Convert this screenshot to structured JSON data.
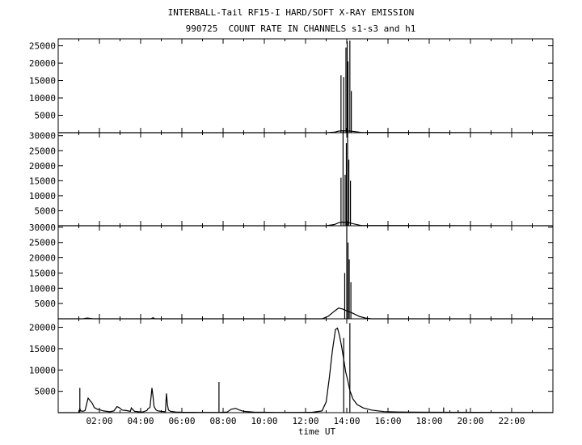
{
  "title": "INTERBALL-Tail RF15-I HARD/SOFT X-RAY EMISSION",
  "subtitle": "990725  COUNT RATE IN CHANNELS s1-s3 and h1",
  "chart_data": [
    {
      "type": "line",
      "panel": "s1",
      "x_range": [
        0,
        24
      ],
      "xlabel": "",
      "ylim": [
        0,
        27000
      ],
      "ytick_values": [
        5000,
        10000,
        15000,
        20000,
        25000
      ],
      "ytick_labels": [
        "5000",
        "10000",
        "15000",
        "20000",
        "25000"
      ],
      "baseline": {
        "x": [
          0,
          13.0,
          13.4,
          13.6,
          13.75,
          14.1,
          14.4,
          14.7,
          24
        ],
        "y": [
          0,
          0,
          150,
          450,
          550,
          500,
          300,
          60,
          0
        ]
      },
      "spikes": {
        "x": [
          13.72,
          13.85,
          13.96,
          14.02,
          14.06,
          14.15,
          14.22
        ],
        "y": [
          16500,
          16000,
          24500,
          26300,
          20500,
          26500,
          12000
        ]
      }
    },
    {
      "type": "line",
      "panel": "s2",
      "x_range": [
        0,
        24
      ],
      "xlabel": "",
      "ylim": [
        0,
        31000
      ],
      "ytick_values": [
        5000,
        10000,
        15000,
        20000,
        25000,
        30000
      ],
      "ytick_labels": [
        "5000",
        "10000",
        "15000",
        "20000",
        "25000",
        "30000"
      ],
      "baseline": {
        "x": [
          0,
          13.0,
          13.4,
          13.6,
          13.75,
          14.1,
          14.4,
          14.7,
          24
        ],
        "y": [
          0,
          0,
          400,
          1000,
          1200,
          1000,
          500,
          80,
          0
        ]
      },
      "spikes": {
        "x": [
          13.72,
          13.82,
          13.92,
          13.98,
          14.04,
          14.1,
          14.18
        ],
        "y": [
          16000,
          31500,
          17000,
          27500,
          31000,
          22000,
          15000
        ]
      }
    },
    {
      "type": "line",
      "panel": "s3",
      "x_range": [
        0,
        24
      ],
      "xlabel": "",
      "ylim": [
        0,
        30500
      ],
      "ytick_values": [
        5000,
        10000,
        15000,
        20000,
        25000,
        30000
      ],
      "ytick_labels": [
        "5000",
        "10000",
        "15000",
        "20000",
        "25000",
        "30000"
      ],
      "baseline": {
        "x": [
          0,
          1.2,
          1.4,
          1.7,
          4.5,
          4.6,
          4.7,
          12.8,
          13.1,
          13.4,
          13.6,
          13.8,
          14.0,
          14.3,
          14.6,
          14.9,
          15.2,
          24
        ],
        "y": [
          0,
          0,
          250,
          0,
          0,
          350,
          0,
          0,
          800,
          2500,
          3500,
          3200,
          2600,
          1800,
          800,
          250,
          0,
          0
        ]
      },
      "spikes": {
        "x": [
          13.9,
          14.0,
          14.06,
          14.12,
          14.2
        ],
        "y": [
          15000,
          30000,
          25000,
          19500,
          12000
        ]
      }
    },
    {
      "type": "line",
      "panel": "h1",
      "x_range": [
        0,
        24
      ],
      "xlabel": "time UT",
      "ylim": [
        0,
        22000
      ],
      "ytick_values": [
        5000,
        10000,
        15000,
        20000
      ],
      "ytick_labels": [
        "5000",
        "10000",
        "15000",
        "20000"
      ],
      "xtick_values": [
        2,
        4,
        6,
        8,
        10,
        12,
        14,
        16,
        18,
        20,
        22
      ],
      "xtick_labels": [
        "02:00",
        "04:00",
        "06:00",
        "08:00",
        "10:00",
        "12:00",
        "14:00",
        "16:00",
        "18:00",
        "20:00",
        "22:00"
      ],
      "baseline": {
        "x": [
          0,
          1.0,
          1.05,
          1.1,
          1.2,
          1.3,
          1.45,
          1.55,
          1.65,
          1.75,
          1.9,
          2.05,
          2.2,
          2.35,
          2.5,
          2.7,
          2.85,
          2.95,
          3.1,
          3.3,
          3.5,
          3.55,
          3.7,
          3.9,
          4.1,
          4.3,
          4.35,
          4.45,
          4.5,
          4.55,
          4.6,
          4.65,
          4.75,
          4.85,
          5.0,
          5.2,
          5.25,
          5.3,
          5.35,
          5.45,
          5.7,
          6.0,
          6.5,
          7.0,
          7.5,
          7.9,
          8.2,
          8.4,
          8.6,
          8.8,
          9.0,
          9.5,
          10.5,
          11.5,
          12.3,
          12.8,
          13.0,
          13.15,
          13.3,
          13.45,
          13.55,
          13.65,
          13.75,
          13.85,
          13.95,
          14.05,
          14.15,
          14.3,
          14.5,
          14.8,
          15.2,
          15.8,
          16.5,
          18.0,
          20.0,
          22.0,
          24
        ],
        "y": [
          0,
          0,
          900,
          400,
          300,
          500,
          3400,
          2800,
          2200,
          1200,
          800,
          600,
          400,
          300,
          200,
          400,
          1400,
          1200,
          600,
          500,
          300,
          1100,
          300,
          200,
          150,
          500,
          900,
          1200,
          3500,
          5800,
          3800,
          1400,
          600,
          400,
          300,
          200,
          4500,
          1800,
          600,
          300,
          150,
          100,
          80,
          60,
          60,
          80,
          150,
          800,
          1000,
          600,
          300,
          120,
          60,
          60,
          80,
          400,
          2500,
          8000,
          14500,
          19500,
          19800,
          18000,
          15500,
          12500,
          9500,
          7500,
          5200,
          3200,
          1900,
          1100,
          600,
          250,
          150,
          100,
          80,
          60,
          40
        ]
      },
      "spikes": {
        "x": [
          1.05,
          7.8,
          13.85,
          14.15
        ],
        "y": [
          5800,
          7200,
          17500,
          21000
        ]
      },
      "small_ticks": {
        "x": [
          18.7,
          19.4,
          19.8
        ],
        "y": [
          1200,
          600,
          800
        ]
      }
    }
  ]
}
